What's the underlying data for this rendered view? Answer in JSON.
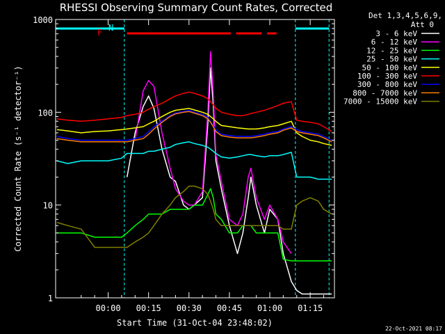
{
  "chart_data": {
    "type": "line",
    "title": "RHESSI Observing Summary Count Rates, Corrected",
    "xlabel": "Start Time (31-Oct-04 23:48:02)",
    "ylabel": "Corrected Count Rate (s⁻¹ detector⁻¹)",
    "yscale": "log",
    "xlim": [
      -19.5,
      84
    ],
    "ylim": [
      1,
      1000
    ],
    "xticks": [
      {
        "value": 0,
        "label": "00:00"
      },
      {
        "value": 15,
        "label": "00:15"
      },
      {
        "value": 30,
        "label": "00:30"
      },
      {
        "value": 45,
        "label": "00:45"
      },
      {
        "value": 60,
        "label": "01:00"
      },
      {
        "value": 75,
        "label": "01:15"
      }
    ],
    "yticks": [
      {
        "value": 1,
        "label": "1"
      },
      {
        "value": 10,
        "label": "10"
      },
      {
        "value": 100,
        "label": "100"
      },
      {
        "value": 1000,
        "label": "1000"
      }
    ],
    "legend": {
      "header": [
        "Det 1,3,4,5,6,9,",
        "Att 0"
      ],
      "position": "right"
    },
    "annotations": {
      "night_label": "N",
      "flare_label": "F",
      "night_intervals": [
        [
          -19.5,
          6
        ],
        [
          69.5,
          82
        ]
      ],
      "flare_intervals": [
        [
          7,
          45.5
        ],
        [
          47.5,
          57
        ],
        [
          59,
          62.5
        ]
      ],
      "date_stamp": "22-Oct-2021 08:17"
    },
    "x": [
      -19,
      -15,
      -10,
      -5,
      0,
      5,
      7,
      10,
      13,
      15,
      17,
      20,
      23,
      25,
      28,
      30,
      32,
      35,
      37,
      38,
      39,
      40,
      42,
      45,
      48,
      50,
      52,
      53,
      55,
      58,
      60,
      63,
      65,
      68,
      70,
      72,
      75,
      78,
      80,
      83
    ],
    "series": [
      {
        "name": "3 - 6 keV",
        "color": "#ffffff",
        "values": [
          null,
          null,
          null,
          null,
          null,
          null,
          20,
          60,
          115,
          150,
          110,
          40,
          20,
          18,
          10,
          9,
          10,
          12,
          75,
          300,
          120,
          30,
          15,
          6,
          3,
          5,
          12,
          20,
          10,
          5,
          9,
          7,
          3,
          1.5,
          1.2,
          1.1,
          1.1,
          1.1,
          1.1,
          1.1
        ]
      },
      {
        "name": "6 - 12 keV",
        "color": "#ff00ff",
        "values": [
          null,
          null,
          null,
          null,
          null,
          null,
          null,
          50,
          170,
          220,
          190,
          60,
          25,
          15,
          11,
          10,
          10,
          14,
          100,
          450,
          160,
          35,
          18,
          7,
          6,
          8,
          20,
          25,
          12,
          7,
          10,
          7,
          4,
          3,
          null,
          null,
          null,
          null,
          null,
          null
        ]
      },
      {
        "name": "12 - 25 keV",
        "color": "#00ff00",
        "values": [
          5,
          5,
          5,
          4.5,
          4.5,
          4.5,
          5,
          6,
          7,
          8,
          8,
          8,
          9,
          9,
          9,
          9,
          10,
          10,
          13,
          15,
          12,
          8,
          7,
          5,
          5,
          6,
          6,
          6,
          5,
          5,
          5,
          5,
          2.6,
          2.5,
          2.5,
          2.5,
          2.5,
          2.5,
          2.5,
          2.5
        ]
      },
      {
        "name": "25 - 50 keV",
        "color": "#00ffff",
        "values": [
          30,
          28,
          30,
          30,
          30,
          32,
          36,
          36,
          36,
          38,
          38,
          40,
          42,
          45,
          47,
          48,
          46,
          44,
          42,
          40,
          38,
          36,
          33,
          32,
          33,
          34,
          35,
          35,
          34,
          33,
          34,
          34,
          35,
          37,
          20,
          20,
          20,
          19,
          19,
          19
        ]
      },
      {
        "name": "50 - 100 keV",
        "color": "#ffff00",
        "values": [
          65,
          63,
          60,
          62,
          63,
          65,
          66,
          68,
          70,
          75,
          80,
          90,
          100,
          105,
          108,
          110,
          106,
          100,
          95,
          90,
          85,
          80,
          72,
          70,
          68,
          67,
          66,
          66,
          66,
          68,
          70,
          72,
          75,
          80,
          60,
          55,
          50,
          48,
          46,
          44
        ]
      },
      {
        "name": "100 - 300 keV",
        "color": "#ff0000",
        "values": [
          85,
          82,
          80,
          82,
          85,
          88,
          92,
          95,
          100,
          108,
          115,
          125,
          140,
          150,
          160,
          165,
          160,
          150,
          140,
          130,
          120,
          110,
          100,
          95,
          92,
          92,
          95,
          97,
          100,
          105,
          110,
          118,
          125,
          130,
          82,
          80,
          78,
          75,
          70,
          62
        ]
      },
      {
        "name": "300 - 800 keV",
        "color": "#0000ff",
        "values": [
          55,
          52,
          50,
          50,
          50,
          50,
          50,
          52,
          55,
          62,
          70,
          80,
          92,
          98,
          102,
          105,
          100,
          95,
          88,
          80,
          72,
          65,
          58,
          56,
          55,
          55,
          55,
          55,
          56,
          58,
          60,
          62,
          66,
          70,
          65,
          62,
          60,
          58,
          55,
          50
        ]
      },
      {
        "name": "800 - 7000 keV",
        "color": "#ff8000",
        "values": [
          52,
          50,
          48,
          48,
          48,
          48,
          48,
          50,
          52,
          58,
          66,
          78,
          90,
          96,
          100,
          102,
          98,
          92,
          85,
          78,
          70,
          62,
          56,
          54,
          53,
          53,
          53,
          53,
          54,
          56,
          58,
          60,
          64,
          68,
          62,
          60,
          58,
          56,
          53,
          48
        ]
      },
      {
        "name": "7000 - 15000 keV",
        "color": "#808000",
        "values": [
          6.5,
          6,
          5.5,
          3.5,
          3.5,
          3.5,
          3.5,
          4,
          4.5,
          5,
          6,
          8,
          10,
          12,
          14,
          16,
          16,
          15,
          13,
          11,
          9,
          7,
          6,
          6,
          6,
          6,
          6,
          6,
          6,
          6,
          6,
          6,
          5.5,
          5.5,
          10,
          11,
          12,
          11,
          9,
          8
        ]
      }
    ]
  }
}
